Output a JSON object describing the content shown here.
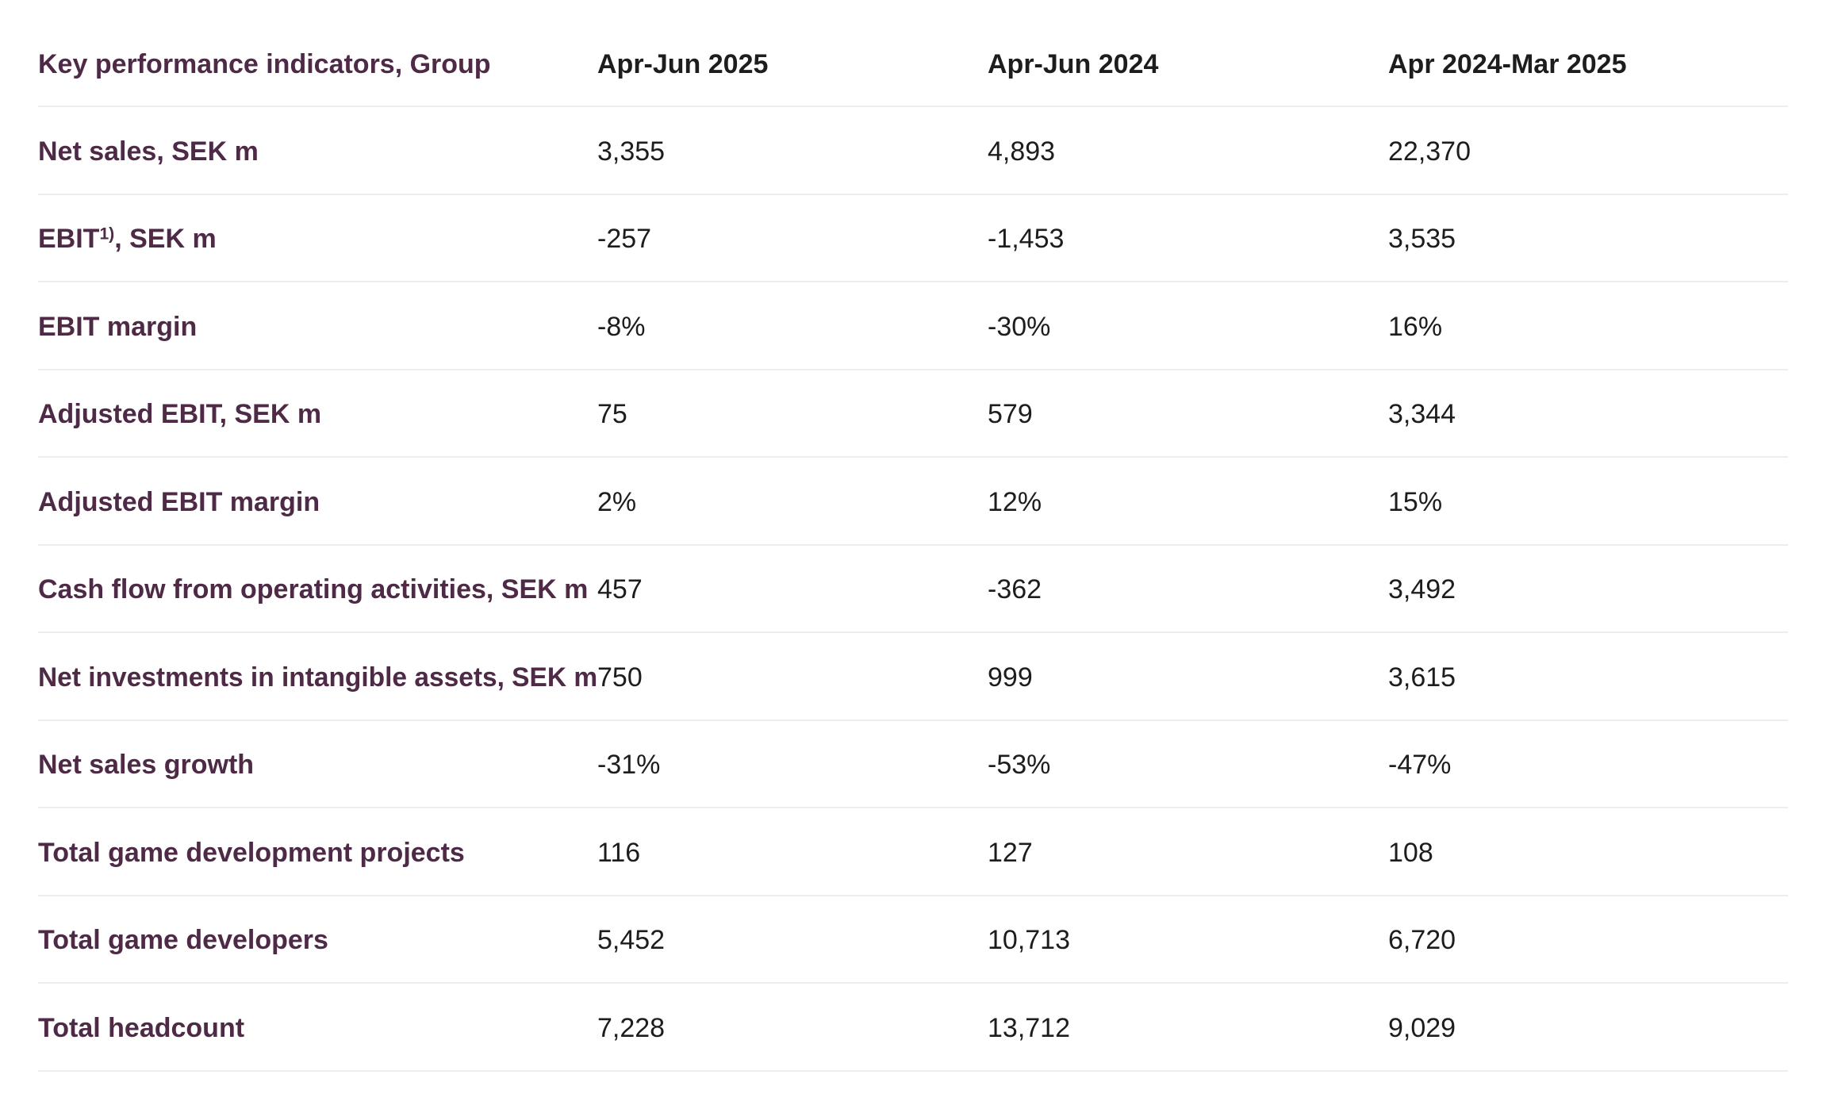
{
  "colors": {
    "label": "#4e2a46",
    "value": "#1d1d1b",
    "divider": "#ededed",
    "background": "#ffffff"
  },
  "table": {
    "header": {
      "label": "Key performance indicators, Group",
      "columns": [
        "Apr-Jun 2025",
        "Apr-Jun 2024",
        "Apr 2024-Mar 2025"
      ]
    },
    "rows": [
      {
        "label": "Net sales, SEK m",
        "values": [
          "3,355",
          "4,893",
          "22,370"
        ]
      },
      {
        "label": "EBIT",
        "label_sup": "1)",
        "label_suffix": ", SEK m",
        "values": [
          "-257",
          "-1,453",
          "3,535"
        ]
      },
      {
        "label": "EBIT margin",
        "values": [
          "-8%",
          "-30%",
          "16%"
        ]
      },
      {
        "label": "Adjusted EBIT, SEK m",
        "values": [
          "75",
          "579",
          "3,344"
        ]
      },
      {
        "label": "Adjusted EBIT margin",
        "values": [
          "2%",
          "12%",
          "15%"
        ]
      },
      {
        "label": "Cash flow from operating activities, SEK m",
        "values": [
          "457",
          "-362",
          "3,492"
        ]
      },
      {
        "label": "Net investments in intangible assets, SEK m",
        "values": [
          "750",
          "999",
          "3,615"
        ]
      },
      {
        "label": "Net sales growth",
        "values": [
          "-31%",
          "-53%",
          "-47%"
        ]
      },
      {
        "label": "Total game development projects",
        "values": [
          "116",
          "127",
          "108"
        ]
      },
      {
        "label": "Total game developers",
        "values": [
          "5,452",
          "10,713",
          "6,720"
        ]
      },
      {
        "label": "Total headcount",
        "values": [
          "7,228",
          "13,712",
          "9,029"
        ]
      }
    ]
  }
}
